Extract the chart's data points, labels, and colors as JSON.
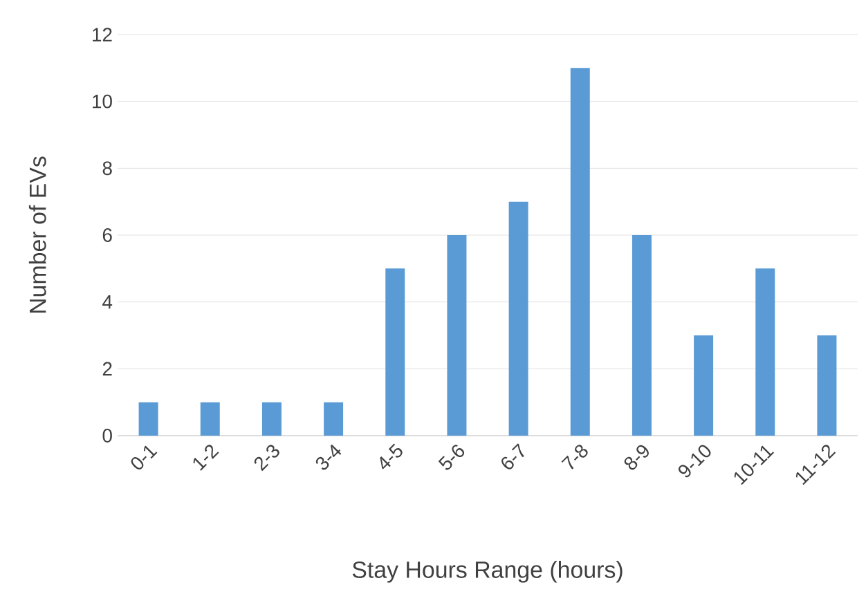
{
  "chart_data": {
    "type": "bar",
    "xlabel": "Stay Hours Range (hours)",
    "ylabel": "Number of EVs",
    "categories": [
      "0-1",
      "1-2",
      "2-3",
      "3-4",
      "4-5",
      "5-6",
      "6-7",
      "7-8",
      "8-9",
      "9-10",
      "10-11",
      "11-12"
    ],
    "values": [
      1,
      1,
      1,
      1,
      5,
      6,
      7,
      11,
      6,
      3,
      5,
      3
    ],
    "color": "#5b9bd5",
    "ylim": [
      0,
      12
    ],
    "yticks": [
      0,
      2,
      4,
      6,
      8,
      10,
      12
    ],
    "grid": "y"
  }
}
